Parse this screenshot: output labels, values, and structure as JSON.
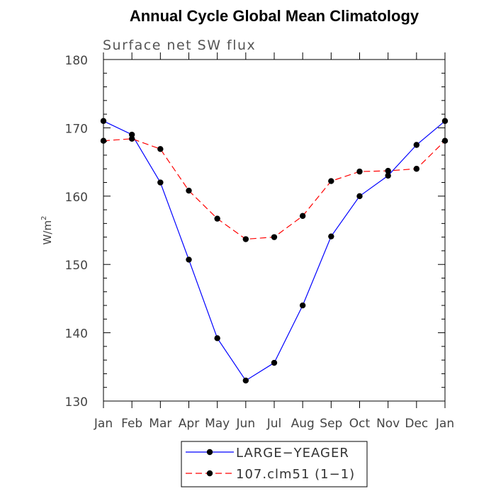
{
  "chart_data": {
    "type": "line",
    "title": "Annual Cycle Global Mean Climatology",
    "subtitle": "Surface net SW flux",
    "ylabel_base": "W/m",
    "ylabel_sup": "2",
    "xlabel": "",
    "categories": [
      "Jan",
      "Feb",
      "Mar",
      "Apr",
      "May",
      "Jun",
      "Jul",
      "Aug",
      "Sep",
      "Oct",
      "Nov",
      "Dec",
      "Jan"
    ],
    "ylim": [
      130,
      180
    ],
    "yticks": [
      130,
      140,
      150,
      160,
      170,
      180
    ],
    "grid": false,
    "legend_position": "bottom",
    "series": [
      {
        "name": "LARGE−YEAGER",
        "color": "#0000ff",
        "dash": "solid",
        "marker": "circle",
        "values": [
          171.0,
          169.0,
          162.0,
          150.7,
          139.2,
          133.0,
          135.6,
          144.0,
          154.1,
          160.0,
          163.0,
          167.5,
          171.0
        ]
      },
      {
        "name": "107.clm51 (1−1)",
        "color": "#ff0000",
        "dash": "dashed",
        "marker": "circle",
        "values": [
          168.1,
          168.4,
          166.9,
          160.8,
          156.7,
          153.7,
          154.0,
          157.1,
          162.2,
          163.6,
          163.7,
          164.0,
          168.1
        ]
      }
    ]
  }
}
